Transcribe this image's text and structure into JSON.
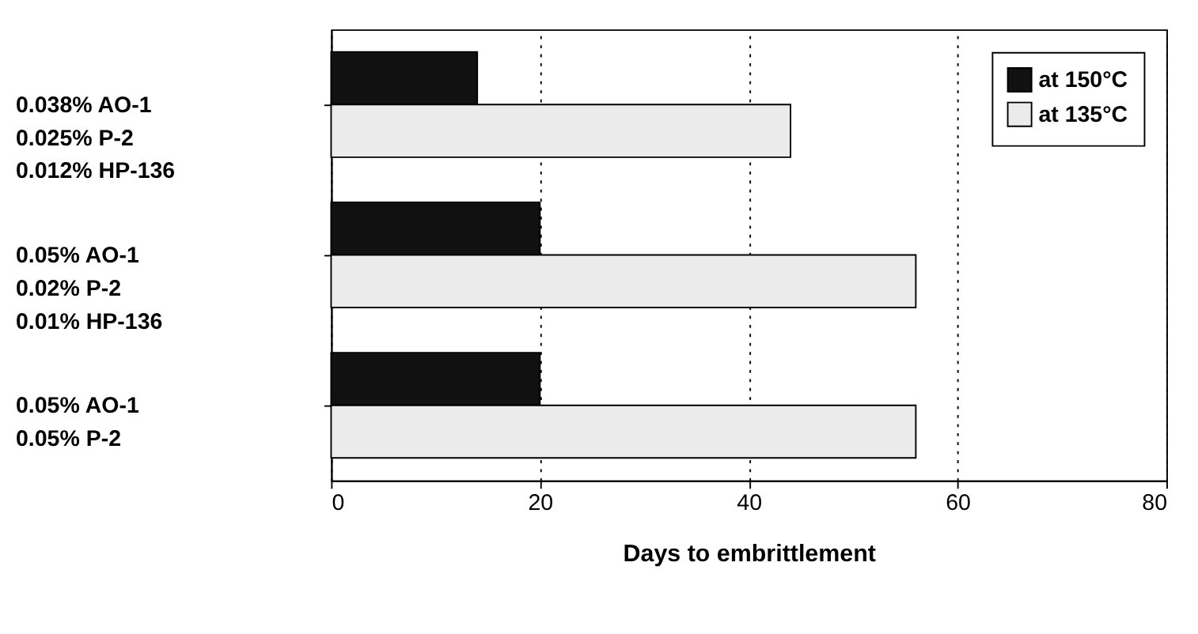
{
  "chart_data": {
    "type": "bar",
    "orientation": "horizontal",
    "xlabel": "Days to embrittlement",
    "categories": [
      "0.038% AO-1\n0.025% P-2\n0.012% HP-136",
      "0.05% AO-1\n0.02% P-2\n0.01% HP-136",
      "0.05% AO-1\n0.05% P-2"
    ],
    "series": [
      {
        "name": "at 150°C",
        "color": "#111111",
        "values": [
          14,
          20,
          20
        ]
      },
      {
        "name": "at 135°C",
        "color": "#ebebeb",
        "values": [
          44,
          56,
          56
        ]
      }
    ],
    "xlim": [
      0,
      80
    ],
    "xticks": [
      0,
      20,
      40,
      60,
      80
    ],
    "grid": "x",
    "legend": "top right"
  }
}
